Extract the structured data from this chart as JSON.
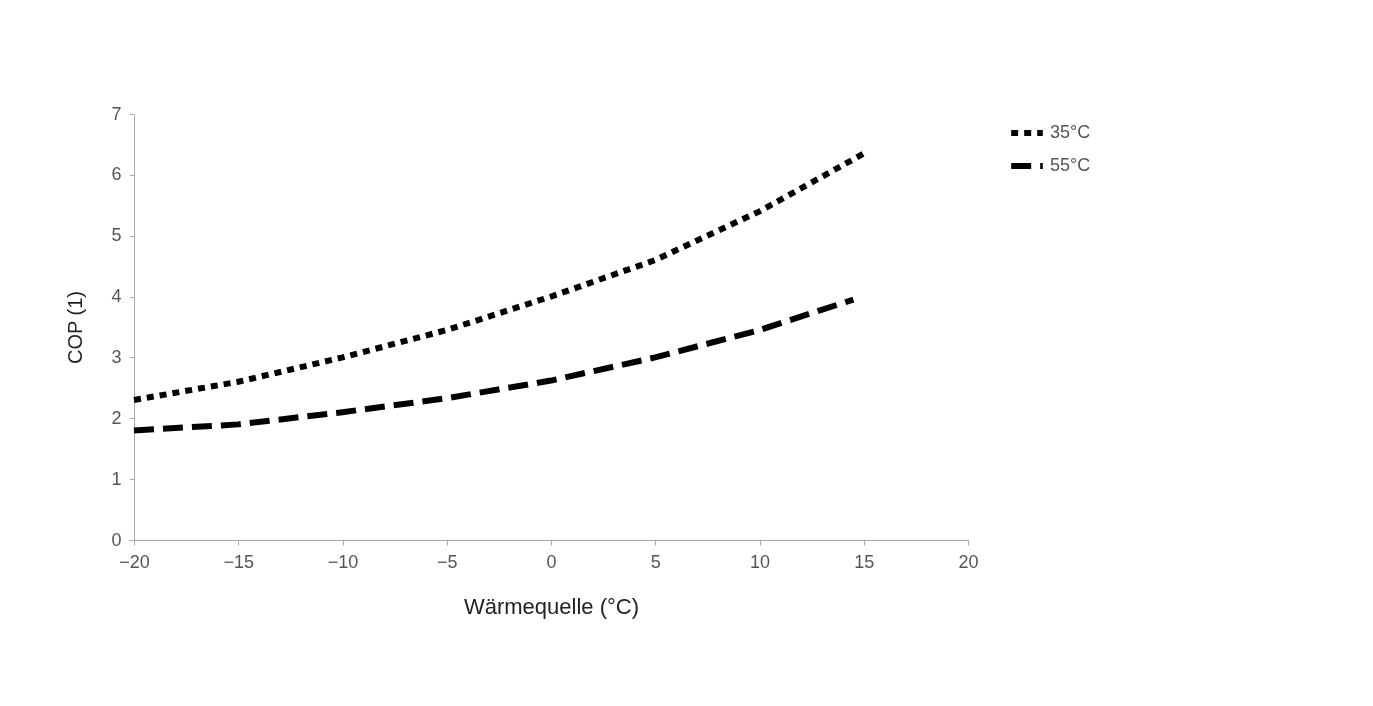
{
  "chart_data": {
    "type": "line",
    "xlabel": "Wärmequelle (°C)",
    "ylabel": "COP (1)",
    "xlim": [
      -20,
      20
    ],
    "xticks": [
      -20,
      -15,
      -10,
      -5,
      0,
      5,
      10,
      15,
      20
    ],
    "ylim": [
      0,
      7
    ],
    "yticks": [
      0,
      1,
      2,
      3,
      4,
      5,
      6,
      7
    ],
    "grid": false,
    "legend": "right",
    "marker": "none",
    "series": [
      {
        "name": "35°C",
        "color": "#000000",
        "line_style": "dotted",
        "x": [
          -20,
          -15,
          -10,
          -5,
          0,
          5,
          10,
          15
        ],
        "values": [
          2.3,
          2.6,
          3.0,
          3.45,
          4.0,
          4.6,
          5.4,
          6.35
        ]
      },
      {
        "name": "55°C",
        "color": "#000000",
        "line_style": "dashed",
        "x": [
          -20,
          -15,
          -10,
          -5,
          0,
          5,
          10,
          14.5
        ],
        "values": [
          1.8,
          1.9,
          2.1,
          2.33,
          2.62,
          3.0,
          3.45,
          3.95
        ]
      }
    ]
  }
}
